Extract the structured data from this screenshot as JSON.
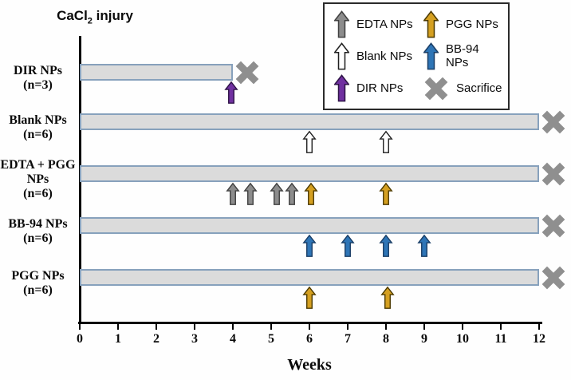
{
  "figure": {
    "title_prefix": "CaCl",
    "title_sub": "2",
    "title_suffix": " injury"
  },
  "legend": {
    "items": [
      {
        "type": "EDTA",
        "label": "EDTA NPs"
      },
      {
        "type": "PGG",
        "label": "PGG NPs"
      },
      {
        "type": "Blank",
        "label": "Blank NPs"
      },
      {
        "type": "BB-94",
        "label": "BB-94 NPs"
      },
      {
        "type": "DIR",
        "label": "DIR NPs"
      },
      {
        "type": "sacrifice",
        "label": "Sacrifice"
      }
    ]
  },
  "chart_data": {
    "type": "timeline",
    "title": "CaCl2 injury",
    "xlabel": "Weeks",
    "xlim": [
      0,
      12
    ],
    "x_ticks": [
      "0",
      "1",
      "2",
      "3",
      "4",
      "5",
      "6",
      "7",
      "8",
      "9",
      "10",
      "11",
      "12"
    ],
    "legend_position": "top-right",
    "colors": {
      "EDTA": {
        "fill": "#8c8c8c",
        "stroke": "#404040"
      },
      "Blank": {
        "fill": "#ffffff",
        "stroke": "#1f1f1f"
      },
      "DIR": {
        "fill": "#7030a0",
        "stroke": "#2e1347"
      },
      "PGG": {
        "fill": "#d5a021",
        "stroke": "#4d3a00"
      },
      "BB-94": {
        "fill": "#2e75b6",
        "stroke": "#1a3e66"
      },
      "sacrifice": "#8f8f8f",
      "bar_fill": "#dbdbdb",
      "bar_border": "#87a1bc"
    },
    "groups": [
      {
        "label": "DIR NPs",
        "n": "(n=3)",
        "bar_start_week": 0,
        "bar_end_week": 4,
        "injections": [
          {
            "type": "DIR",
            "week": 3.95
          }
        ],
        "sacrifice_week": 4
      },
      {
        "label": "Blank NPs",
        "n": "(n=6)",
        "bar_start_week": 0,
        "bar_end_week": 12,
        "injections": [
          {
            "type": "Blank",
            "week": 6
          },
          {
            "type": "Blank",
            "week": 8
          }
        ],
        "sacrifice_week": 12
      },
      {
        "label": "EDTA + PGG NPs",
        "n": "(n=6)",
        "bar_start_week": 0,
        "bar_end_week": 12,
        "injections": [
          {
            "type": "EDTA",
            "week": 4.0
          },
          {
            "type": "EDTA",
            "week": 4.45
          },
          {
            "type": "EDTA",
            "week": 5.15
          },
          {
            "type": "EDTA",
            "week": 5.55
          },
          {
            "type": "PGG",
            "week": 6.05
          },
          {
            "type": "PGG",
            "week": 8.0
          }
        ],
        "sacrifice_week": 12
      },
      {
        "label": "BB-94 NPs",
        "n": "(n=6)",
        "bar_start_week": 0,
        "bar_end_week": 12,
        "injections": [
          {
            "type": "BB-94",
            "week": 6
          },
          {
            "type": "BB-94",
            "week": 7
          },
          {
            "type": "BB-94",
            "week": 8
          },
          {
            "type": "BB-94",
            "week": 9
          }
        ],
        "sacrifice_week": 12
      },
      {
        "label": "PGG NPs",
        "n": "(n=6)",
        "bar_start_week": 0,
        "bar_end_week": 12,
        "injections": [
          {
            "type": "PGG",
            "week": 6
          },
          {
            "type": "PGG",
            "week": 8.05
          }
        ],
        "sacrifice_week": 12
      }
    ]
  }
}
